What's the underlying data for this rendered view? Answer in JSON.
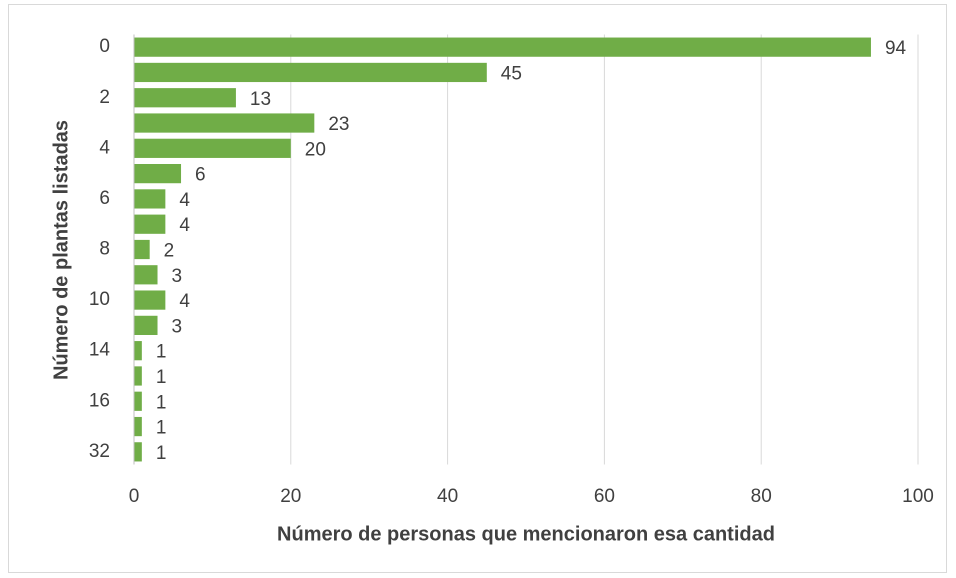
{
  "chart_data": {
    "type": "bar",
    "orientation": "horizontal",
    "x_label": "Número de personas que mencionaron esa cantidad",
    "y_label": "Número de plantas listadas",
    "categories": [
      "0",
      null,
      "2",
      null,
      "4",
      null,
      "6",
      null,
      "8",
      null,
      "10",
      null,
      "14",
      null,
      "16",
      null,
      "32"
    ],
    "values": [
      94,
      45,
      13,
      23,
      20,
      6,
      4,
      4,
      2,
      3,
      4,
      3,
      1,
      1,
      1,
      1,
      1
    ],
    "color": "#70ad47",
    "xlim": [
      0,
      100
    ],
    "xticks": [
      0,
      20,
      40,
      60,
      80,
      100
    ],
    "grid": true
  }
}
